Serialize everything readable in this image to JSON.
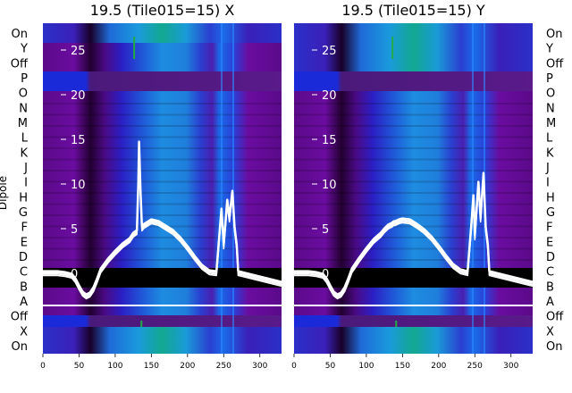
{
  "chart_data": [
    {
      "type": "heatmap",
      "title": "19.5 (Tile015=15) X",
      "ylabel": "Dipole",
      "xlim": [
        0,
        330
      ],
      "x_ticks": [
        0,
        50,
        100,
        150,
        200,
        250,
        300
      ],
      "y_ticks": [
        25,
        20,
        15,
        10,
        5,
        0
      ],
      "ylim": [
        -9,
        28
      ],
      "dipole_labels": [
        "On",
        "Y",
        "Off",
        "P",
        "O",
        "N",
        "M",
        "L",
        "K",
        "J",
        "I",
        "H",
        "G",
        "F",
        "E",
        "D",
        "C",
        "B",
        "A",
        "Off",
        "X",
        "On"
      ],
      "series": [
        {
          "x": [
            0,
            10,
            20,
            30,
            40,
            45,
            50,
            55,
            60,
            65,
            70,
            75,
            80,
            90,
            100,
            110,
            120,
            125,
            130,
            132,
            133,
            135,
            137,
            140,
            150,
            160,
            170,
            180,
            190,
            200,
            210,
            220,
            230,
            240,
            245,
            247,
            250,
            255,
            258,
            262,
            265,
            268,
            270,
            280,
            290,
            300,
            310,
            320,
            330
          ],
          "y": [
            0,
            0,
            0,
            -0.1,
            -0.3,
            -0.8,
            -1.6,
            -2.3,
            -2.6,
            -2.4,
            -1.8,
            -0.8,
            0.3,
            1.4,
            2.3,
            3.1,
            3.7,
            4.3,
            4.6,
            10,
            14.5,
            9,
            5,
            5.3,
            5.8,
            5.6,
            5.1,
            4.6,
            3.8,
            2.8,
            1.7,
            0.7,
            0.1,
            0,
            5,
            7,
            3,
            8,
            6,
            9,
            5,
            3,
            0,
            -0.2,
            -0.4,
            -0.6,
            -0.8,
            -1.0,
            -1.2
          ]
        }
      ]
    },
    {
      "type": "heatmap",
      "title": "19.5 (Tile015=15) Y",
      "ylabel": "",
      "xlim": [
        0,
        330
      ],
      "x_ticks": [
        0,
        50,
        100,
        150,
        200,
        250,
        300
      ],
      "y_ticks": [
        25,
        20,
        15,
        10,
        5,
        0
      ],
      "ylim": [
        -9,
        28
      ],
      "dipole_labels": [
        "On",
        "Y",
        "Off",
        "P",
        "O",
        "N",
        "M",
        "L",
        "K",
        "J",
        "I",
        "H",
        "G",
        "F",
        "E",
        "D",
        "C",
        "B",
        "A",
        "Off",
        "X",
        "On"
      ],
      "series": [
        {
          "x": [
            0,
            10,
            20,
            30,
            40,
            45,
            50,
            55,
            60,
            65,
            70,
            75,
            80,
            90,
            100,
            110,
            120,
            125,
            130,
            135,
            138,
            140,
            145,
            150,
            160,
            170,
            180,
            190,
            200,
            210,
            220,
            230,
            240,
            245,
            248,
            250,
            255,
            258,
            262,
            265,
            268,
            270,
            280,
            290,
            300,
            310,
            320,
            330
          ],
          "y": [
            0,
            0,
            0,
            -0.1,
            -0.3,
            -0.8,
            -1.6,
            -2.3,
            -2.6,
            -2.4,
            -1.8,
            -0.8,
            0.3,
            1.5,
            2.6,
            3.6,
            4.3,
            4.8,
            5.2,
            5.4,
            5.6,
            5.6,
            5.8,
            5.9,
            5.8,
            5.3,
            4.7,
            3.9,
            2.9,
            1.8,
            0.8,
            0.2,
            0,
            5,
            8.5,
            4,
            10,
            6,
            11,
            5,
            3,
            0,
            -0.2,
            -0.4,
            -0.6,
            -0.8,
            -1.0,
            -1.2
          ]
        }
      ]
    }
  ]
}
